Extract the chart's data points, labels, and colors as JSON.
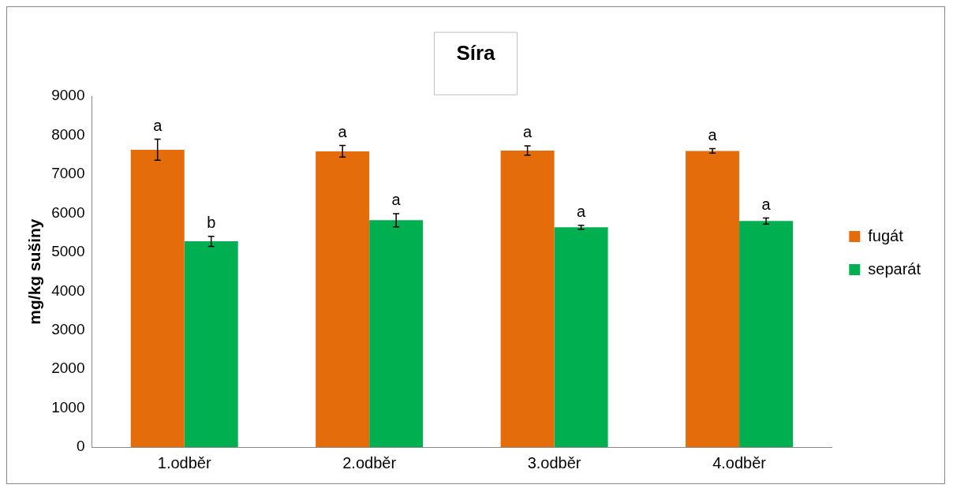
{
  "chart_data": {
    "type": "bar",
    "title": "Síra",
    "ylabel": "mg/kg sušiny",
    "categories": [
      "1.odběr",
      "2.odběr",
      "3.odběr",
      "4.odběr"
    ],
    "series": [
      {
        "name": "fugát",
        "color": "#e46c0a",
        "values": [
          7630,
          7590,
          7610,
          7600
        ],
        "errors": [
          270,
          150,
          120,
          60
        ],
        "value_labels": [
          "a",
          "a",
          "a",
          "a"
        ]
      },
      {
        "name": "separát",
        "color": "#00b050",
        "values": [
          5280,
          5820,
          5640,
          5800
        ],
        "errors": [
          130,
          170,
          50,
          80
        ],
        "value_labels": [
          "b",
          "a",
          "a",
          "a"
        ]
      }
    ],
    "ylim": [
      0,
      9000
    ],
    "yticks": [
      0,
      1000,
      2000,
      3000,
      4000,
      5000,
      6000,
      7000,
      8000,
      9000
    ],
    "grid": false,
    "legend": "right"
  }
}
